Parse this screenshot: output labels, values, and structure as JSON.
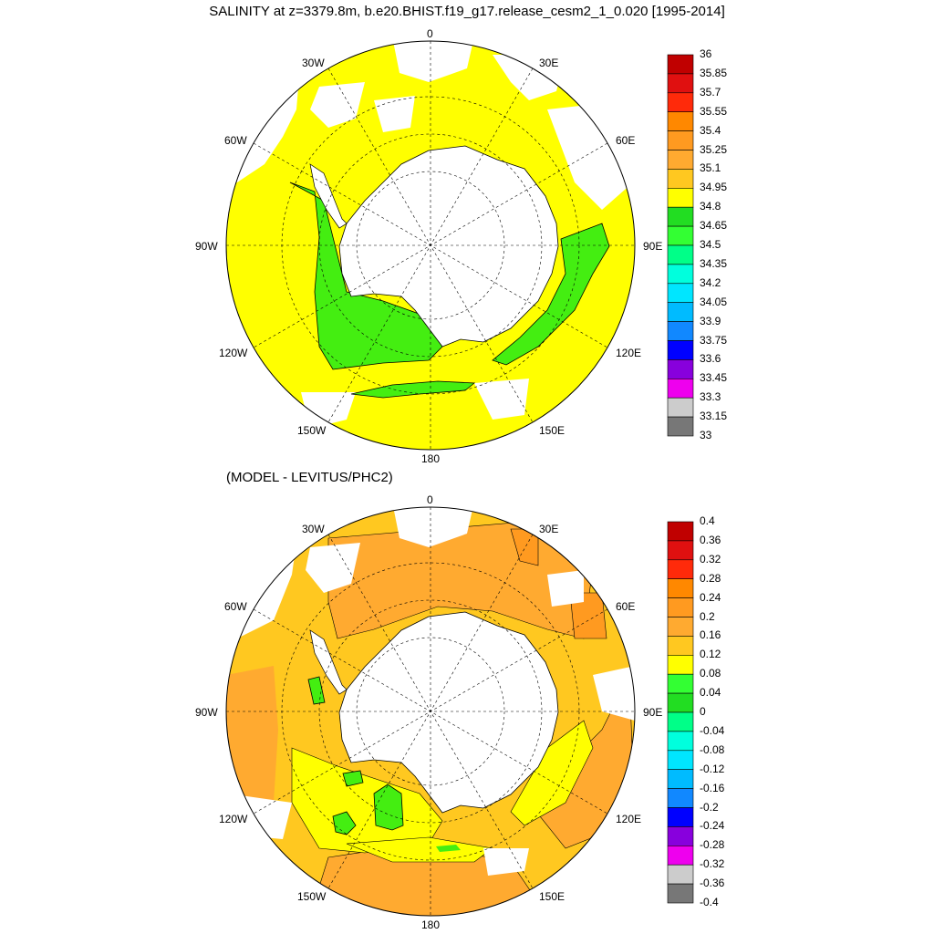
{
  "title": "SALINITY at z=3379.8m, b.e20.BHIST.f19_g17.release_cesm2_1_0.020 [1995-2014]",
  "subtitle": "(MODEL - LEVITUS/PHC2)",
  "lon_labels": {
    "top": "0",
    "bottom": "180",
    "r30w": "30W",
    "r60w": "60W",
    "r90w": "90W",
    "r120w": "120W",
    "r150w": "150W",
    "r30e": "30E",
    "r60e": "60E",
    "r90e": "90E",
    "r120e": "120E",
    "r150e": "150E"
  },
  "colorbar_top": {
    "levels": [
      "36",
      "35.85",
      "35.7",
      "35.55",
      "35.4",
      "35.25",
      "35.1",
      "34.95",
      "34.8",
      "34.65",
      "34.5",
      "34.35",
      "34.2",
      "34.05",
      "33.9",
      "33.75",
      "33.6",
      "33.45",
      "33.3",
      "33.15",
      "33"
    ],
    "colors": [
      "#c00000",
      "#e01010",
      "#ff2a0a",
      "#ff8800",
      "#ff9a20",
      "#ffaa30",
      "#ffc820",
      "#ffff00",
      "#22dd22",
      "#33ff33",
      "#00ff88",
      "#00ffdd",
      "#00e6ff",
      "#00bbff",
      "#1188ff",
      "#0000ff",
      "#8800dd",
      "#ee00ee",
      "#cccccc",
      "#777777"
    ]
  },
  "colorbar_bottom": {
    "levels": [
      "0.4",
      "0.36",
      "0.32",
      "0.28",
      "0.24",
      "0.2",
      "0.16",
      "0.12",
      "0.08",
      "0.04",
      "0",
      "-0.04",
      "-0.08",
      "-0.12",
      "-0.16",
      "-0.2",
      "-0.24",
      "-0.28",
      "-0.32",
      "-0.36",
      "-0.4"
    ],
    "colors": [
      "#c00000",
      "#e01010",
      "#ff2a0a",
      "#ff8800",
      "#ff9a20",
      "#ffaa30",
      "#ffc820",
      "#ffff00",
      "#33ff33",
      "#22dd22",
      "#00ff88",
      "#00ffdd",
      "#00e6ff",
      "#00bbff",
      "#1188ff",
      "#0000ff",
      "#8800dd",
      "#ee00ee",
      "#cccccc",
      "#777777"
    ]
  },
  "colors": {
    "ocean_top": "#ffff00",
    "shelf_top": "#44ee11",
    "ocean_bottom": "#ffc820",
    "positive_bottom": "#ffaa30",
    "green_bottom": "#44ee11",
    "yellow_bottom": "#ffff00",
    "land": "#ffffff"
  }
}
